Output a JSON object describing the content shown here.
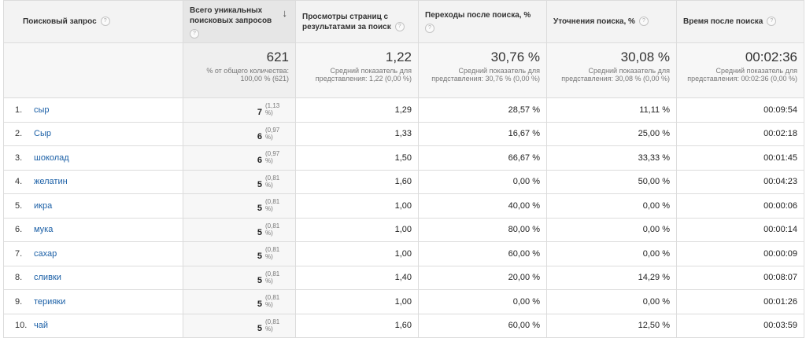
{
  "columns": {
    "query": "Поисковый запрос",
    "unique_searches": "Всего уникальных поисковых запросов",
    "pageviews": "Просмотры страниц с результатами за поиск",
    "exits": "Переходы после поиска, %",
    "refinements": "Уточнения поиска, %",
    "time_after": "Время после поиска",
    "help_icon": "?",
    "sort_arrow": "↓"
  },
  "summary": {
    "unique_searches": {
      "value": "621",
      "sub1": "% от общего количества:",
      "sub2": "100,00 % (621)"
    },
    "pageviews": {
      "value": "1,22",
      "sub1": "Средний показатель для",
      "sub2": "представления: 1,22 (0,00 %)"
    },
    "exits": {
      "value": "30,76 %",
      "sub1": "Средний показатель для",
      "sub2": "представления: 30,76 % (0,00 %)"
    },
    "refinements": {
      "value": "30,08 %",
      "sub1": "Средний показатель для",
      "sub2": "представления: 30,08 % (0,00 %)"
    },
    "time_after": {
      "value": "00:02:36",
      "sub1": "Средний показатель для",
      "sub2": "представления: 00:02:36 (0,00 %)"
    }
  },
  "rows": [
    {
      "index": "1.",
      "query": "сыр",
      "unique": "7",
      "pct": "(1,13 %)",
      "pageviews": "1,29",
      "exits": "28,57 %",
      "refinements": "11,11 %",
      "time": "00:09:54"
    },
    {
      "index": "2.",
      "query": "Сыр",
      "unique": "6",
      "pct": "(0,97 %)",
      "pageviews": "1,33",
      "exits": "16,67 %",
      "refinements": "25,00 %",
      "time": "00:02:18"
    },
    {
      "index": "3.",
      "query": "шоколад",
      "unique": "6",
      "pct": "(0,97 %)",
      "pageviews": "1,50",
      "exits": "66,67 %",
      "refinements": "33,33 %",
      "time": "00:01:45"
    },
    {
      "index": "4.",
      "query": "желатин",
      "unique": "5",
      "pct": "(0,81 %)",
      "pageviews": "1,60",
      "exits": "0,00 %",
      "refinements": "50,00 %",
      "time": "00:04:23"
    },
    {
      "index": "5.",
      "query": "икра",
      "unique": "5",
      "pct": "(0,81 %)",
      "pageviews": "1,00",
      "exits": "40,00 %",
      "refinements": "0,00 %",
      "time": "00:00:06"
    },
    {
      "index": "6.",
      "query": "мука",
      "unique": "5",
      "pct": "(0,81 %)",
      "pageviews": "1,00",
      "exits": "80,00 %",
      "refinements": "0,00 %",
      "time": "00:00:14"
    },
    {
      "index": "7.",
      "query": "сахар",
      "unique": "5",
      "pct": "(0,81 %)",
      "pageviews": "1,00",
      "exits": "60,00 %",
      "refinements": "0,00 %",
      "time": "00:00:09"
    },
    {
      "index": "8.",
      "query": "сливки",
      "unique": "5",
      "pct": "(0,81 %)",
      "pageviews": "1,40",
      "exits": "20,00 %",
      "refinements": "14,29 %",
      "time": "00:08:07"
    },
    {
      "index": "9.",
      "query": "терияки",
      "unique": "5",
      "pct": "(0,81 %)",
      "pageviews": "1,00",
      "exits": "0,00 %",
      "refinements": "0,00 %",
      "time": "00:01:26"
    },
    {
      "index": "10.",
      "query": "чай",
      "unique": "5",
      "pct": "(0,81 %)",
      "pageviews": "1,60",
      "exits": "60,00 %",
      "refinements": "12,50 %",
      "time": "00:03:59"
    }
  ]
}
